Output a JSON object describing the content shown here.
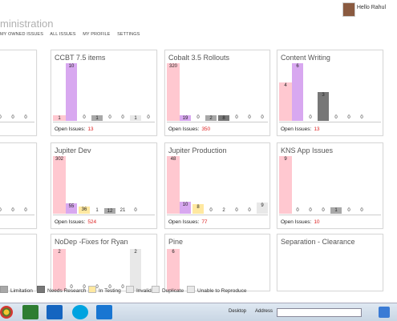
{
  "header": {
    "title": "ministration",
    "greeting": "Hello Rahul",
    "nav": [
      "MY OWNED ISSUES",
      "ALL ISSUES",
      "MY PROFILE",
      "SETTINGS"
    ]
  },
  "colors": {
    "pink": "#ffc8d0",
    "purple": "#d8a8f0",
    "gray": "#a8a8a8",
    "darkgray": "#777777",
    "yellow": "#ffe8a0",
    "lightgray": "#e8e8e8",
    "count_red": "#d22222"
  },
  "footer_label": "Open Issues:",
  "cards": [
    {
      "title": "",
      "open_count": "",
      "bars": [
        {
          "v": 0
        },
        {
          "v": 0
        },
        {
          "v": 0
        },
        {
          "v": 0
        }
      ]
    },
    {
      "title": "CCBT 7.5 items",
      "open_count": "13",
      "bars": [
        {
          "v": 1,
          "c": "pink"
        },
        {
          "v": 10,
          "c": "purple"
        },
        {
          "v": 0
        },
        {
          "v": 1,
          "c": "gray"
        },
        {
          "v": 0
        },
        {
          "v": 0
        },
        {
          "v": 1,
          "c": "lightgray"
        },
        {
          "v": 0
        }
      ]
    },
    {
      "title": "Cobalt 3.5 Rollouts",
      "open_count": "350",
      "bars": [
        {
          "v": 320,
          "c": "pink"
        },
        {
          "v": 19,
          "c": "purple"
        },
        {
          "v": 0
        },
        {
          "v": 2,
          "c": "gray"
        },
        {
          "v": 8,
          "c": "darkgray"
        },
        {
          "v": 0
        },
        {
          "v": 0
        },
        {
          "v": 0
        }
      ]
    },
    {
      "title": "Content Writing",
      "open_count": "13",
      "bars": [
        {
          "v": 4,
          "c": "pink"
        },
        {
          "v": 6,
          "c": "purple"
        },
        {
          "v": 0
        },
        {
          "v": 3,
          "c": "darkgray"
        },
        {
          "v": 0
        },
        {
          "v": 0
        },
        {
          "v": 0
        }
      ]
    },
    {
      "title": "",
      "open_count": "",
      "bars": [
        {
          "v": 0
        },
        {
          "v": 0
        },
        {
          "v": 0
        },
        {
          "v": 0
        }
      ]
    },
    {
      "title": "Jupiter Dev",
      "open_count": "524",
      "bars": [
        {
          "v": 302,
          "c": "pink"
        },
        {
          "v": 55,
          "c": "purple"
        },
        {
          "v": 36,
          "c": "yellow"
        },
        {
          "v": 1
        },
        {
          "v": 12,
          "c": "gray"
        },
        {
          "v": 21
        },
        {
          "v": 0
        }
      ]
    },
    {
      "title": "Jupiter Production",
      "open_count": "77",
      "bars": [
        {
          "v": 48,
          "c": "pink"
        },
        {
          "v": 10,
          "c": "purple"
        },
        {
          "v": 8,
          "c": "yellow"
        },
        {
          "v": 0
        },
        {
          "v": 2
        },
        {
          "v": 0
        },
        {
          "v": 0
        },
        {
          "v": 9,
          "c": "lightgray"
        },
        {
          "v": 0
        }
      ]
    },
    {
      "title": "KNS App Issues",
      "open_count": "10",
      "bars": [
        {
          "v": 9,
          "c": "pink"
        },
        {
          "v": 0
        },
        {
          "v": 0
        },
        {
          "v": 0
        },
        {
          "v": 1,
          "c": "gray"
        },
        {
          "v": 0
        },
        {
          "v": 0
        }
      ]
    },
    {
      "title": "",
      "open_count": "",
      "bars": []
    },
    {
      "title": "NoDep -Fixes for Ryan",
      "open_count": "",
      "bars": [
        {
          "v": 2,
          "c": "pink"
        },
        {
          "v": 0
        },
        {
          "v": 0
        },
        {
          "v": 0
        },
        {
          "v": 0
        },
        {
          "v": 0
        },
        {
          "v": 2,
          "c": "lightgray"
        }
      ]
    },
    {
      "title": "Pine",
      "open_count": "",
      "bars": [
        {
          "v": 6,
          "c": "pink"
        }
      ]
    },
    {
      "title": "Separation - Clearance",
      "open_count": "",
      "bars": []
    }
  ],
  "legend": [
    {
      "label": "Limitation",
      "c": "gray"
    },
    {
      "label": "Needs Research",
      "c": "darkgray"
    },
    {
      "label": "In Testing",
      "c": "yellow"
    },
    {
      "label": "Invalid",
      "c": "lightgray"
    },
    {
      "label": "Duplicate",
      "c": "lightgray"
    },
    {
      "label": "Unable to Reproduce",
      "c": "lightgray"
    }
  ],
  "taskbar": {
    "desktop": "Desktop",
    "address": "Address"
  }
}
